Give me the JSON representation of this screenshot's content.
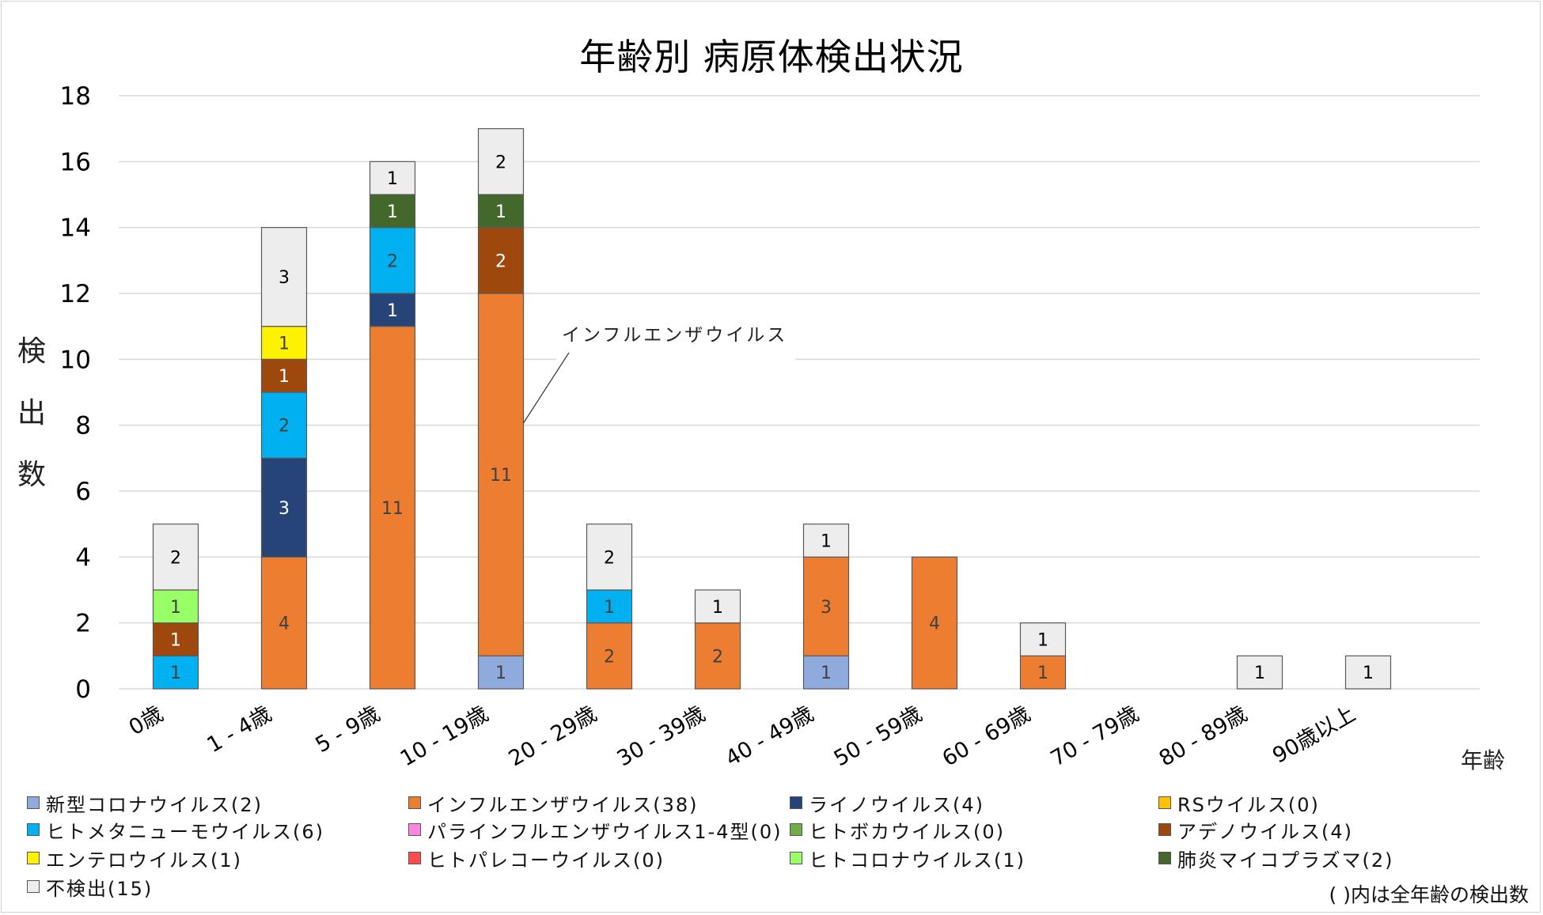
{
  "chart_data": {
    "type": "bar",
    "stacked": true,
    "title": "年齢別 病原体検出状況",
    "xlabel": "年齢",
    "ylabel": "検出数",
    "ylim": [
      0,
      18
    ],
    "yticks": [
      0,
      2,
      4,
      6,
      8,
      10,
      12,
      14,
      16,
      18
    ],
    "grid": true,
    "legend_position": "bottom",
    "categories": [
      "0歳",
      "1 - 4歳",
      "5 - 9歳",
      "10 - 19歳",
      "20 - 29歳",
      "30 - 39歳",
      "40 - 49歳",
      "50 - 59歳",
      "60 - 69歳",
      "70 - 79歳",
      "80 - 89歳",
      "90歳以上"
    ],
    "series": [
      {
        "name": "新型コロナウイルス",
        "total": 2,
        "color": "#8FAADC",
        "label_color": "#404040",
        "values": [
          0,
          0,
          0,
          1,
          0,
          0,
          1,
          0,
          0,
          0,
          0,
          0
        ]
      },
      {
        "name": "インフルエンザウイルス",
        "total": 38,
        "color": "#ED7D31",
        "label_color": "#404040",
        "values": [
          0,
          4,
          11,
          11,
          2,
          2,
          3,
          4,
          1,
          0,
          0,
          0
        ]
      },
      {
        "name": "ライノウイルス",
        "total": 4,
        "color": "#264478",
        "label_color": "#FFFFFF",
        "values": [
          0,
          3,
          1,
          0,
          0,
          0,
          0,
          0,
          0,
          0,
          0,
          0
        ]
      },
      {
        "name": "RSウイルス",
        "total": 0,
        "color": "#FFC000",
        "label_color": "#404040",
        "values": [
          0,
          0,
          0,
          0,
          0,
          0,
          0,
          0,
          0,
          0,
          0,
          0
        ]
      },
      {
        "name": "ヒトメタニューモウイルス",
        "total": 6,
        "color": "#00B0F0",
        "label_color": "#404040",
        "values": [
          1,
          2,
          2,
          0,
          1,
          0,
          0,
          0,
          0,
          0,
          0,
          0
        ]
      },
      {
        "name": "パラインフルエンザウイルス1-4型",
        "total": 0,
        "color": "#FF85E0",
        "label_color": "#404040",
        "values": [
          0,
          0,
          0,
          0,
          0,
          0,
          0,
          0,
          0,
          0,
          0,
          0
        ]
      },
      {
        "name": "ヒトボカウイルス",
        "total": 0,
        "color": "#70AD47",
        "label_color": "#404040",
        "values": [
          0,
          0,
          0,
          0,
          0,
          0,
          0,
          0,
          0,
          0,
          0,
          0
        ]
      },
      {
        "name": "アデノウイルス",
        "total": 4,
        "color": "#9E480E",
        "label_color": "#FFFFFF",
        "values": [
          1,
          1,
          0,
          2,
          0,
          0,
          0,
          0,
          0,
          0,
          0,
          0
        ]
      },
      {
        "name": "エンテロウイルス",
        "total": 1,
        "color": "#FFF200",
        "label_color": "#404040",
        "values": [
          0,
          1,
          0,
          0,
          0,
          0,
          0,
          0,
          0,
          0,
          0,
          0
        ]
      },
      {
        "name": "ヒトパレコーウイルス",
        "total": 0,
        "color": "#FF4B4B",
        "label_color": "#404040",
        "values": [
          0,
          0,
          0,
          0,
          0,
          0,
          0,
          0,
          0,
          0,
          0,
          0
        ]
      },
      {
        "name": "ヒトコロナウイルス",
        "total": 1,
        "color": "#99FF66",
        "label_color": "#404040",
        "values": [
          1,
          0,
          0,
          0,
          0,
          0,
          0,
          0,
          0,
          0,
          0,
          0
        ]
      },
      {
        "name": "肺炎マイコプラズマ",
        "total": 2,
        "color": "#43682B",
        "label_color": "#FFFFFF",
        "values": [
          0,
          0,
          1,
          1,
          0,
          0,
          0,
          0,
          0,
          0,
          0,
          0
        ]
      },
      {
        "name": "不検出",
        "total": 15,
        "color": "#EDEDED",
        "label_color": "#000000",
        "values": [
          2,
          3,
          1,
          2,
          2,
          1,
          1,
          0,
          1,
          0,
          1,
          1
        ]
      }
    ],
    "annotations": [
      {
        "text": "インフルエンザウイルス",
        "target_series": "インフルエンザウイルス",
        "target_category": "10 - 19歳"
      }
    ]
  },
  "legend": {
    "items": [
      {
        "label": "新型コロナウイルス(2)",
        "color": "#8FAADC"
      },
      {
        "label": "インフルエンザウイルス(38)",
        "color": "#ED7D31"
      },
      {
        "label": "ライノウイルス(4)",
        "color": "#264478"
      },
      {
        "label": "RSウイルス(0)",
        "color": "#FFC000"
      },
      {
        "label": "ヒトメタニューモウイルス(6)",
        "color": "#00B0F0"
      },
      {
        "label": "パラインフルエンザウイルス1-4型(0)",
        "color": "#FF85E0"
      },
      {
        "label": "ヒトボカウイルス(0)",
        "color": "#70AD47"
      },
      {
        "label": "アデノウイルス(4)",
        "color": "#9E480E"
      },
      {
        "label": "エンテロウイルス(1)",
        "color": "#FFF200"
      },
      {
        "label": "ヒトパレコーウイルス(0)",
        "color": "#FF4B4B"
      },
      {
        "label": "ヒトコロナウイルス(1)",
        "color": "#99FF66"
      },
      {
        "label": "肺炎マイコプラズマ(2)",
        "color": "#43682B"
      },
      {
        "label": "不検出(15)",
        "color": "#EDEDED"
      }
    ]
  },
  "footnote": "( )内は全年齢の検出数",
  "ylabel_chars": [
    "検",
    "出",
    "数"
  ]
}
